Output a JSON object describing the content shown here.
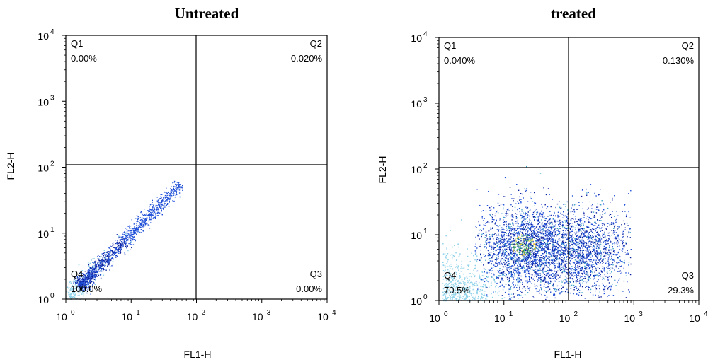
{
  "chart_data": [
    {
      "type": "scatter",
      "title": "Untreated",
      "xlabel": "FL1-H",
      "ylabel": "FL2-H",
      "xscale": "log",
      "yscale": "log",
      "xlim": [
        1,
        10000
      ],
      "ylim": [
        1,
        10000
      ],
      "x_ticks": [
        "10",
        "10",
        "10",
        "10",
        "10"
      ],
      "x_tick_exponents": [
        "0",
        "1",
        "2",
        "3",
        "4"
      ],
      "y_ticks": [
        "10",
        "10",
        "10",
        "10",
        "10"
      ],
      "y_tick_exponents": [
        "0",
        "1",
        "2",
        "3",
        "4"
      ],
      "gate": {
        "x": 100,
        "y": 100
      },
      "quadrants": [
        {
          "name": "Q1",
          "value": "0.00%",
          "position": "top-left"
        },
        {
          "name": "Q2",
          "value": "0.020%",
          "position": "top-right"
        },
        {
          "name": "Q4",
          "value": "100.0%",
          "position": "bottom-left"
        },
        {
          "name": "Q3",
          "value": "0.00%",
          "position": "bottom-right"
        }
      ],
      "distribution": {
        "shape": "diagonal",
        "x_range": [
          1.5,
          60
        ],
        "y_range": [
          1.5,
          60
        ],
        "dense_center": [
          3,
          3
        ]
      },
      "colors": {
        "low": "#8fd3ea",
        "mid": "#1f4fd8",
        "high": "#0a1f9e",
        "hot": "#f2c232"
      }
    },
    {
      "type": "scatter",
      "title": "treated",
      "xlabel": "FL1-H",
      "ylabel": "FL2-H",
      "xscale": "log",
      "yscale": "log",
      "xlim": [
        1,
        10000
      ],
      "ylim": [
        1,
        10000
      ],
      "x_ticks": [
        "10",
        "10",
        "10",
        "10",
        "10"
      ],
      "x_tick_exponents": [
        "0",
        "1",
        "2",
        "3",
        "4"
      ],
      "y_ticks": [
        "10",
        "10",
        "10",
        "10",
        "10"
      ],
      "y_tick_exponents": [
        "0",
        "1",
        "2",
        "3",
        "4"
      ],
      "gate": {
        "x": 100,
        "y": 100
      },
      "quadrants": [
        {
          "name": "Q1",
          "value": "0.040%",
          "position": "top-left"
        },
        {
          "name": "Q2",
          "value": "0.130%",
          "position": "top-right"
        },
        {
          "name": "Q4",
          "value": "70.5%",
          "position": "bottom-left"
        },
        {
          "name": "Q3",
          "value": "29.3%",
          "position": "bottom-right"
        }
      ],
      "distribution": {
        "shape": "cloud",
        "x_range": [
          3,
          600
        ],
        "y_range": [
          1,
          120
        ],
        "dense_center": [
          20,
          6
        ]
      },
      "colors": {
        "low": "#8fd3ea",
        "mid": "#1f4fd8",
        "high": "#0a1f9e",
        "hot": "#f2c232"
      }
    }
  ]
}
